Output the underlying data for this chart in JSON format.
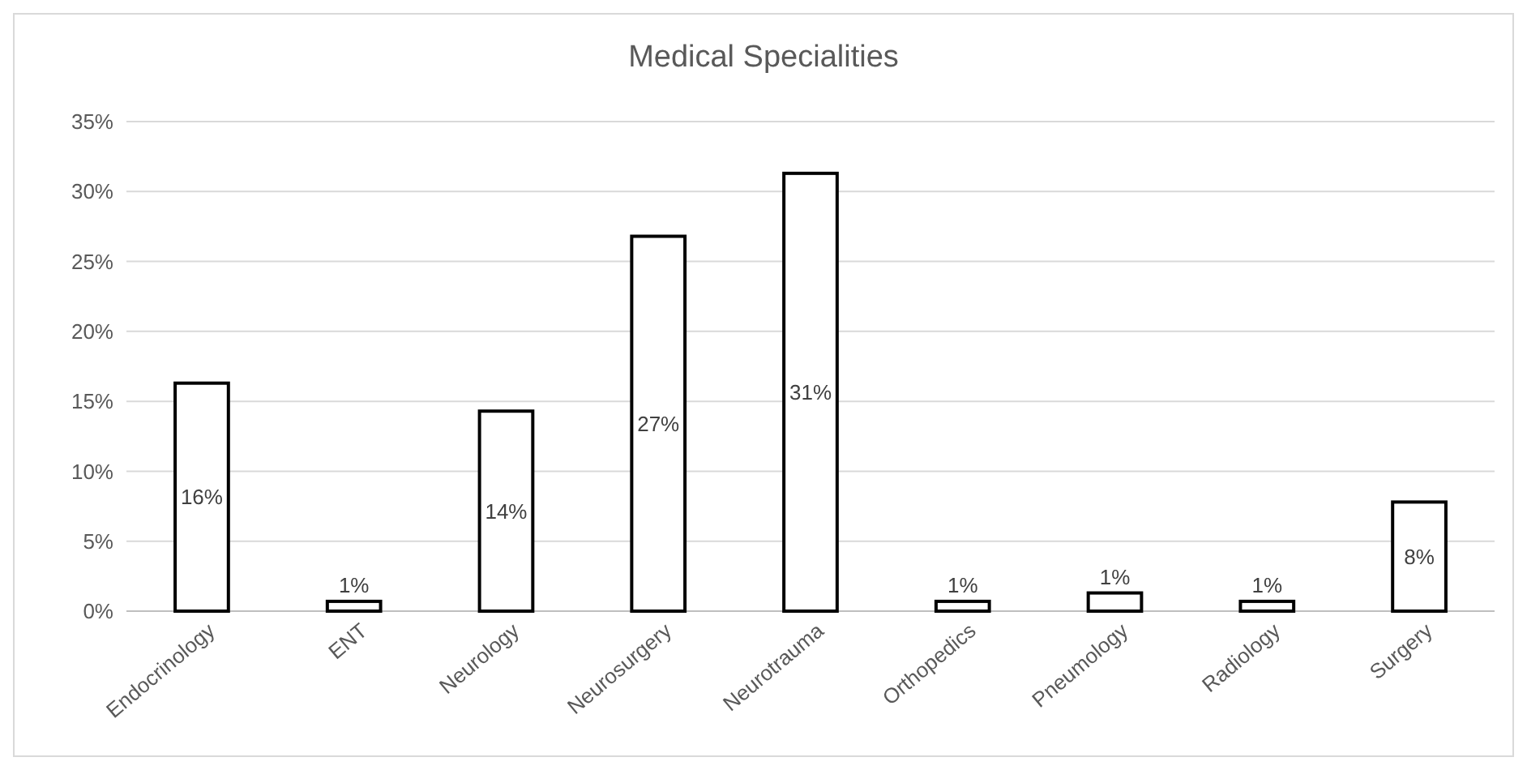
{
  "chart_data": {
    "type": "bar",
    "title": "Medical Specialities",
    "categories": [
      "Endocrinology",
      "ENT",
      "Neurology",
      "Neurosurgery",
      "Neurotrauma",
      "Orthopedics",
      "Pneumology",
      "Radiology",
      "Surgery"
    ],
    "values": [
      16.3,
      0.7,
      14.3,
      26.8,
      31.3,
      0.7,
      1.3,
      0.7,
      7.8
    ],
    "value_labels": [
      "16%",
      "1%",
      "14%",
      "27%",
      "31%",
      "1%",
      "1%",
      "1%",
      "8%"
    ],
    "color": "#ffffff",
    "ylim": [
      0,
      35
    ],
    "yticks": [
      {
        "value": 0,
        "label": "0%"
      },
      {
        "value": 5,
        "label": "5%"
      },
      {
        "value": 10,
        "label": "10%"
      },
      {
        "value": 15,
        "label": "15%"
      },
      {
        "value": 20,
        "label": "20%"
      },
      {
        "value": 25,
        "label": "25%"
      },
      {
        "value": 30,
        "label": "30%"
      },
      {
        "value": 35,
        "label": "35%"
      }
    ],
    "grid": "y"
  }
}
